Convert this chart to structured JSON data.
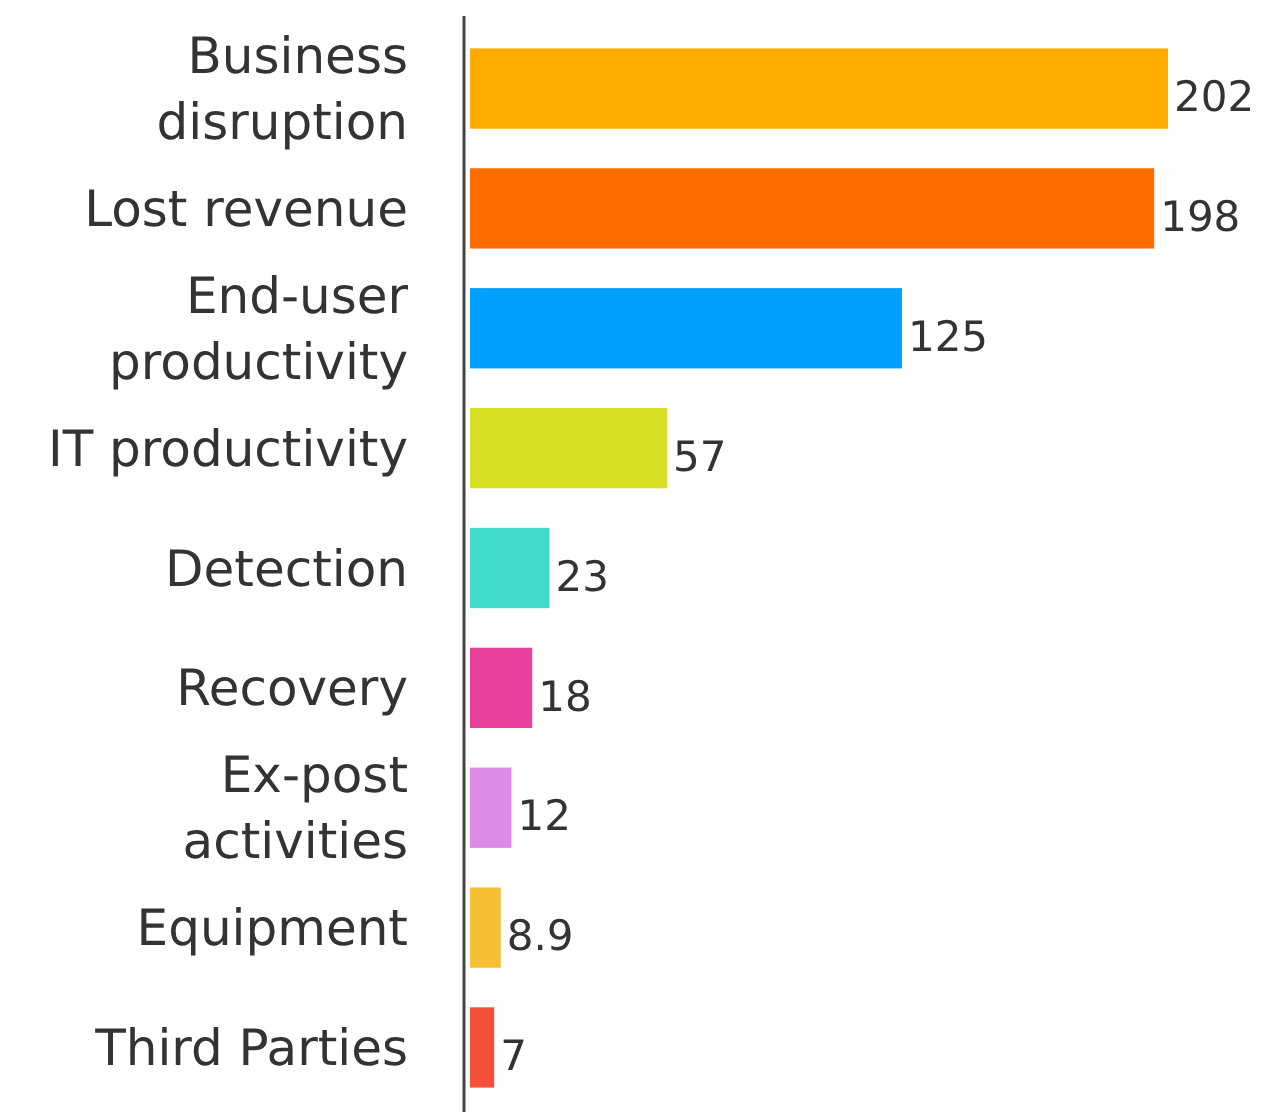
{
  "chart_data": {
    "type": "bar",
    "orientation": "horizontal",
    "categories": [
      "Business disruption",
      "Lost revenue",
      "End-user productivity",
      "IT productivity",
      "Detection",
      "Recovery",
      "Ex-post activities",
      "Equipment",
      "Third Parties"
    ],
    "values": [
      202,
      198,
      125,
      57,
      23,
      18,
      12,
      8.9,
      7
    ],
    "colors": [
      "#ffab00",
      "#ff6d00",
      "#00a0ff",
      "#d4e021",
      "#40dcc8",
      "#e83e9c",
      "#e08ae8",
      "#f7bf36",
      "#f4503a"
    ],
    "data_labels": true
  }
}
